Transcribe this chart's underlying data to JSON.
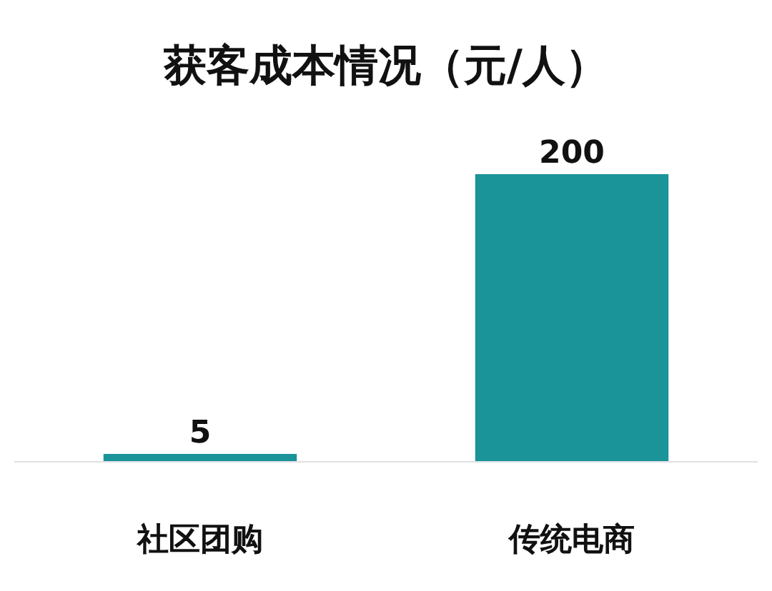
{
  "chart_data": {
    "type": "bar",
    "title": "获客成本情况（元/人）",
    "categories": [
      "社区团购",
      "传统电商"
    ],
    "values": [
      5,
      200
    ],
    "color": "#1a9399",
    "data_labels": true
  }
}
